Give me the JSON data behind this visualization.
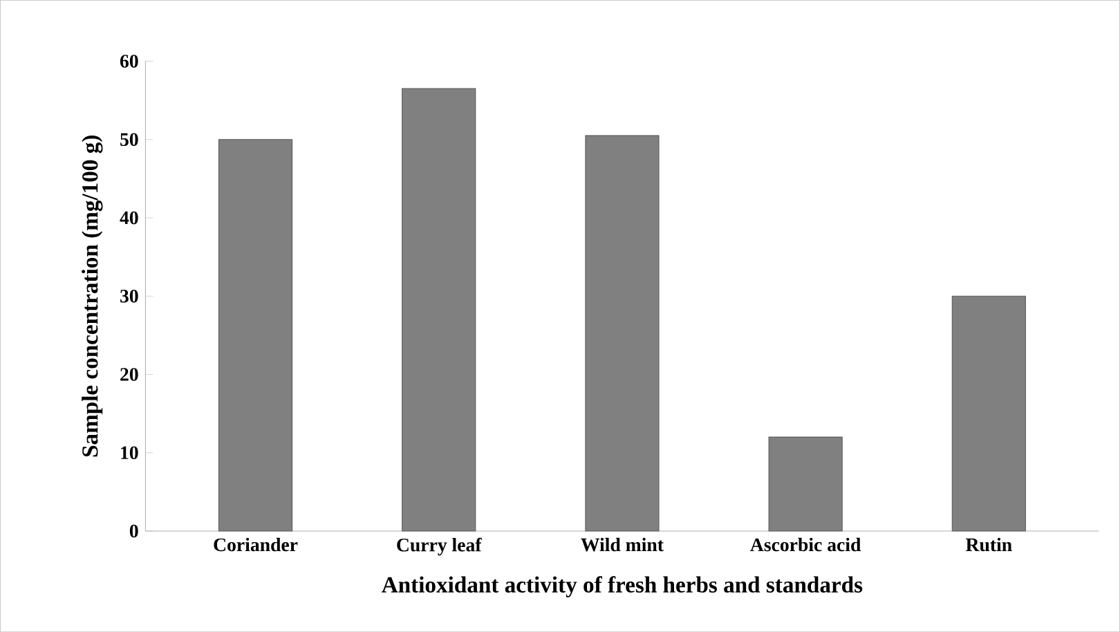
{
  "chart_data": {
    "type": "bar",
    "xlabel": "Antioxidant activity of fresh herbs and standards",
    "ylabel": "Sample concentration (mg/100 g)",
    "categories": [
      "Coriander",
      "Curry leaf",
      "Wild mint",
      "Ascorbic acid",
      "Rutin"
    ],
    "values": [
      50,
      56.5,
      50.5,
      12,
      30
    ],
    "color": "#808080",
    "ylim": [
      0,
      60
    ],
    "yticks": [
      0,
      10,
      20,
      30,
      40,
      50,
      60
    ],
    "grid": false
  }
}
